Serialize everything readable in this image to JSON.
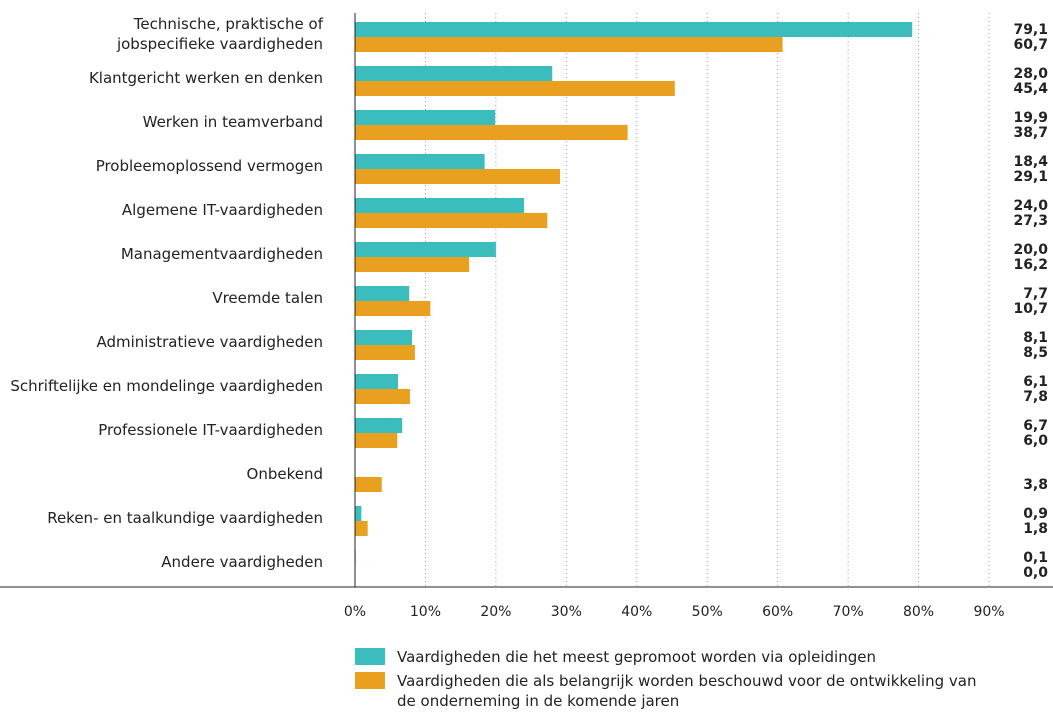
{
  "chart_data": {
    "type": "bar",
    "orientation": "horizontal",
    "categories": [
      "Technische, praktische of\njobspecifieke vaardigheden",
      "Klantgericht werken en denken",
      "Werken in teamverband",
      "Probleemoplossend vermogen",
      "Algemene IT-vaardigheden",
      "Managementvaardigheden",
      "Vreemde talen",
      "Administratieve vaardigheden",
      "Schriftelijke en mondelinge vaardigheden",
      "Professionele IT-vaardigheden",
      "Onbekend",
      "Reken- en taalkundige vaardigheden",
      "Andere vaardigheden"
    ],
    "series": [
      {
        "name": "Vaardigheden die het meest gepromoot worden via opleidingen",
        "color": "#3bbdbd",
        "values": [
          79.1,
          28.0,
          19.9,
          18.4,
          24.0,
          20.0,
          7.7,
          8.1,
          6.1,
          6.7,
          null,
          0.9,
          0.1
        ],
        "value_labels": [
          "79,1",
          "28,0",
          "19,9",
          "18,4",
          "24,0",
          "20,0",
          "7,7",
          "8,1",
          "6,1",
          "6,7",
          null,
          "0,9",
          "0,1"
        ]
      },
      {
        "name": "Vaardigheden die als belangrijk worden beschouwd voor de ontwikkeling van de onderneming in de komende jaren",
        "color": "#e8a01e",
        "values": [
          60.7,
          45.4,
          38.7,
          29.1,
          27.3,
          16.2,
          10.7,
          8.5,
          7.8,
          6.0,
          3.8,
          1.8,
          0.0
        ],
        "value_labels": [
          "60,7",
          "45,4",
          "38,7",
          "29,1",
          "27,3",
          "16,2",
          "10,7",
          "8,5",
          "7,8",
          "6,0",
          "3,8",
          "1,8",
          "0,0"
        ]
      }
    ],
    "xlim": [
      0,
      90
    ],
    "xticks": [
      {
        "value": 0,
        "label": "0%"
      },
      {
        "value": 10,
        "label": "10%"
      },
      {
        "value": 20,
        "label": "20%"
      },
      {
        "value": 30,
        "label": "30%"
      },
      {
        "value": 40,
        "label": "40%"
      },
      {
        "value": 50,
        "label": "50%"
      },
      {
        "value": 60,
        "label": "60%"
      },
      {
        "value": 70,
        "label": "70%"
      },
      {
        "value": 80,
        "label": "80%"
      },
      {
        "value": 90,
        "label": "90%"
      }
    ],
    "grid": true
  }
}
